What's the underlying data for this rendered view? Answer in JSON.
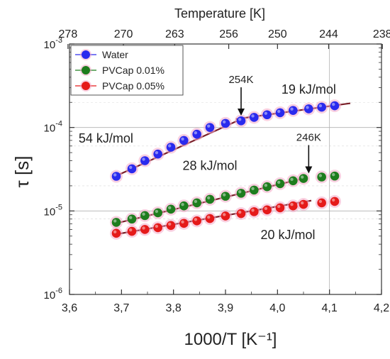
{
  "chart_data": {
    "type": "scatter",
    "xlabel": "1000/T [K⁻¹]",
    "ylabel": "τ [s]",
    "top_xlabel": "Temperature [K]",
    "xlim": [
      3.6,
      4.2
    ],
    "ylim": [
      1e-06,
      0.001
    ],
    "y_scale": "log",
    "x_ticks": [
      "3,6",
      "3,7",
      "3,8",
      "3,9",
      "4,0",
      "4,1",
      "4,2"
    ],
    "x_tick_values": [
      3.6,
      3.7,
      3.8,
      3.9,
      4.0,
      4.1,
      4.2
    ],
    "y_ticks": [
      {
        "base": "10",
        "exp": "-6",
        "value": 1e-06
      },
      {
        "base": "10",
        "exp": "-5",
        "value": 1e-05
      },
      {
        "base": "10",
        "exp": "-4",
        "value": 0.0001
      },
      {
        "base": "10",
        "exp": "-3",
        "value": 0.001
      }
    ],
    "top_ticks": [
      {
        "label": "278",
        "value": 278
      },
      {
        "label": "270",
        "value": 270
      },
      {
        "label": "263",
        "value": 263
      },
      {
        "label": "256",
        "value": 256
      },
      {
        "label": "250",
        "value": 250
      },
      {
        "label": "244",
        "value": 244
      },
      {
        "label": "238",
        "value": 238
      }
    ],
    "legend_position": "top-left",
    "series": [
      {
        "name": "Water",
        "color": "#2a2aee",
        "x": [
          3.69,
          3.72,
          3.745,
          3.77,
          3.795,
          3.82,
          3.845,
          3.87,
          3.9,
          3.93,
          3.955,
          3.98,
          4.005,
          4.03,
          4.06,
          4.085,
          4.11
        ],
        "y": [
          2.6e-05,
          3.2e-05,
          4e-05,
          4.8e-05,
          5.8e-05,
          7e-05,
          8.3e-05,
          0.0001,
          0.000112,
          0.00012,
          0.000132,
          0.000142,
          0.00015,
          0.00016,
          0.000167,
          0.000175,
          0.000182
        ]
      },
      {
        "name": "PVCap 0.01%",
        "color": "#1e7d1e",
        "x": [
          3.69,
          3.72,
          3.745,
          3.77,
          3.795,
          3.82,
          3.845,
          3.87,
          3.9,
          3.93,
          3.955,
          3.98,
          4.005,
          4.03,
          4.05,
          4.085,
          4.11
        ],
        "y": [
          7.3e-06,
          8e-06,
          8.8e-06,
          9.5e-06,
          1.05e-05,
          1.15e-05,
          1.25e-05,
          1.38e-05,
          1.5e-05,
          1.63e-05,
          1.78e-05,
          1.95e-05,
          2.12e-05,
          2.3e-05,
          2.45e-05,
          2.55e-05,
          2.62e-05
        ]
      },
      {
        "name": "PVCap 0.05%",
        "color": "#e51a1a",
        "x": [
          3.69,
          3.72,
          3.745,
          3.77,
          3.795,
          3.82,
          3.845,
          3.87,
          3.9,
          3.93,
          3.955,
          3.98,
          4.005,
          4.03,
          4.05,
          4.085,
          4.11
        ],
        "y": [
          5.4e-06,
          5.7e-06,
          6e-06,
          6.3e-06,
          6.7e-06,
          7.1e-06,
          7.6e-06,
          8.1e-06,
          8.7e-06,
          9.3e-06,
          9.8e-06,
          1.03e-05,
          1.09e-05,
          1.15e-05,
          1.2e-05,
          1.25e-05,
          1.3e-05
        ]
      }
    ],
    "fit_lines": [
      {
        "series": "Water",
        "x1": 3.685,
        "y1": 2.55e-05,
        "x2": 3.93,
        "y2": 0.000126,
        "label": "54 kJ/mol"
      },
      {
        "series": "Water",
        "x1": 3.92,
        "y1": 0.000126,
        "x2": 4.14,
        "y2": 0.000195,
        "label": "19 kJ/mol"
      },
      {
        "series": "PVCap 0.01%",
        "x1": 3.685,
        "y1": 7e-06,
        "x2": 4.05,
        "y2": 2.45e-05,
        "label": "28 kJ/mol"
      },
      {
        "series": "PVCap 0.05%",
        "x1": 3.685,
        "y1": 5.2e-06,
        "x2": 4.065,
        "y2": 1.33e-05,
        "label": "20 kJ/mol"
      }
    ],
    "annotations": [
      {
        "text": "254K",
        "x": 3.93,
        "y": 0.000128
      },
      {
        "text": "246K",
        "x": 4.06,
        "y": 2.6e-05
      }
    ],
    "fit_label_positions": [
      {
        "text": "54 kJ/mol",
        "x": 3.67,
        "y": 6.6e-05
      },
      {
        "text": "19 kJ/mol",
        "x": 4.06,
        "y": 0.000255
      },
      {
        "text": "28 kJ/mol",
        "x": 3.87,
        "y": 3.1e-05
      },
      {
        "text": "20 kJ/mol",
        "x": 4.02,
        "y": 4.6e-06
      }
    ]
  },
  "colors": {
    "fit_line": "#7a1f28",
    "gridline": "#b0b0b0",
    "halo": "#f4aac8"
  }
}
